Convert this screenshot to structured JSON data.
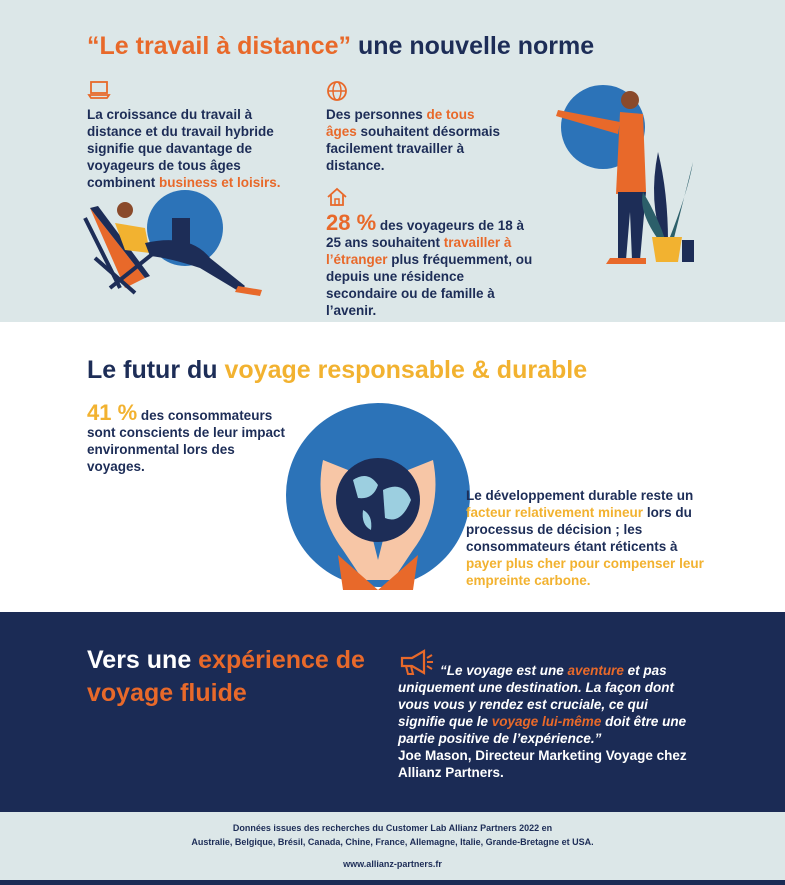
{
  "section1": {
    "title_quote": "“Le travail à distance”",
    "title_rest": " une nouvelle norme",
    "col1_part1": "La croissance du travail à distance et du travail hybride signifie que davantage de voyageurs de tous âges combinent ",
    "col1_highlight": "business et loisirs.",
    "col2_part1": "Des personnes ",
    "col2_highlight": "de tous âges",
    "col2_part2": " souhaitent désormais facilement travailler à distance.",
    "stat_value": "28 %",
    "stat_part1": " des voyageurs de 18 à 25 ans souhaitent ",
    "stat_highlight": "travailler à l’étranger",
    "stat_part2": " plus fréquemment, ou depuis une résidence secondaire ou de famille à l’avenir.",
    "icons": [
      "laptop-icon",
      "globe-icon",
      "house-icon"
    ]
  },
  "section2": {
    "title_part1": "Le futur du ",
    "title_highlight": "voyage responsable & durable",
    "stat_value": "41 %",
    "stat_text": " des consommateurs sont conscients de leur impact environmental lors des voyages.",
    "text_part1": "Le développement durable reste un ",
    "text_highlight1": "facteur relativement mineur",
    "text_part2": " lors du processus de décision ; les consommateurs étant réticents à ",
    "text_highlight2": "payer plus cher pour compenser leur empreinte carbone."
  },
  "section3": {
    "title_part1": "Vers une ",
    "title_highlight": "expérience de voyage fluide",
    "quote_part1": "“Le voyage est une ",
    "quote_highlight1": "aventure",
    "quote_part2": " et pas uniquement une destination. La façon dont vous vous y rendez est cruciale, ce qui signifie que le ",
    "quote_highlight2": "voyage lui-même",
    "quote_part3": " doit être une partie positive de l’expérience.”",
    "attribution": "Joe Mason, Directeur Marketing Voyage chez Allianz Partners.",
    "icon": "megaphone-icon"
  },
  "footer": {
    "source_line1": "Données issues des recherches du Customer Lab Allianz Partners 2022 en",
    "source_line2": "Australie, Belgique, Brésil, Canada, Chine, France, Allemagne, Italie, Grande-Bretagne et USA.",
    "url": "www.allianz-partners.fr"
  },
  "colors": {
    "navy": "#1d2d57",
    "orange": "#e8692a",
    "yellow": "#f2b230",
    "light_bg": "#dce7e8",
    "blue_circle": "#2c73b8"
  }
}
